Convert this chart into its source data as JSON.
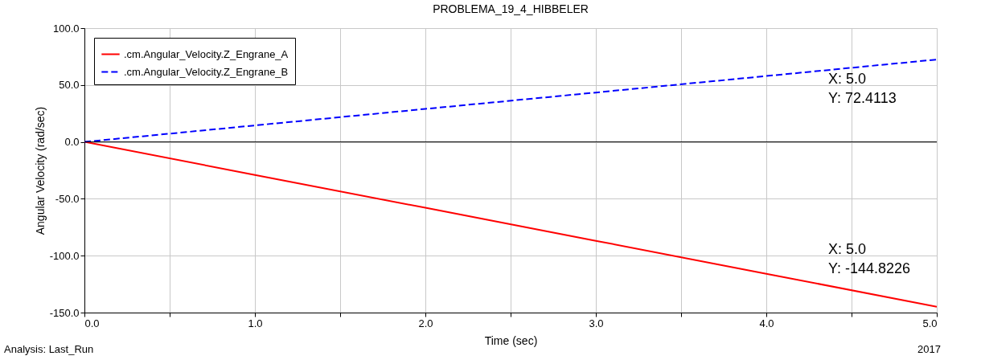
{
  "chart_data": {
    "type": "line",
    "title": "PROBLEMA_19_4_HIBBELER",
    "xlabel": "Time (sec)",
    "ylabel": "Angular Velocity (rad/sec)",
    "x": [
      0,
      1,
      2,
      3,
      4,
      5
    ],
    "series": [
      {
        "name": ".cm.Angular_Velocity.Z_Engrane_A",
        "color": "#ff0000",
        "line_style": "solid",
        "values": [
          0,
          -29,
          -57.9,
          -86.9,
          -115.9,
          -144.8226
        ]
      },
      {
        "name": ".cm.Angular_Velocity.Z_Engrane_B",
        "color": "#0000ff",
        "line_style": "dashed",
        "values": [
          0,
          14.5,
          29,
          43.4,
          57.9,
          72.4113
        ]
      }
    ],
    "xlim": [
      0,
      5
    ],
    "ylim": [
      -150,
      100
    ],
    "xticks": [
      {
        "value": 0,
        "label": "0.0"
      },
      {
        "value": 0.5,
        "label": null
      },
      {
        "value": 1,
        "label": "1.0"
      },
      {
        "value": 1.5,
        "label": null
      },
      {
        "value": 2,
        "label": "2.0"
      },
      {
        "value": 2.5,
        "label": null
      },
      {
        "value": 3,
        "label": "3.0"
      },
      {
        "value": 3.5,
        "label": null
      },
      {
        "value": 4,
        "label": "4.0"
      },
      {
        "value": 4.5,
        "label": null
      },
      {
        "value": 5,
        "label": "5.0"
      }
    ],
    "yticks": [
      {
        "value": -150,
        "label": "-150.0"
      },
      {
        "value": -100,
        "label": "-100.0"
      },
      {
        "value": -50,
        "label": "-50.0"
      },
      {
        "value": 0,
        "label": "0.0"
      },
      {
        "value": 50,
        "label": "50.0"
      },
      {
        "value": 100,
        "label": "100.0"
      }
    ],
    "ref_lines": [
      {
        "axis": "y",
        "value": 0,
        "color": "#000000"
      }
    ],
    "grid": true,
    "legend": "top left",
    "annotations": [
      {
        "text": "X: 5.0\nY: 72.4113",
        "x": 5,
        "y": 72.4113
      },
      {
        "text": "X: 5.0\nY: -144.8226",
        "x": 5,
        "y": -144.8226
      },
      "Analysis:  Last_Run",
      "2017"
    ]
  }
}
